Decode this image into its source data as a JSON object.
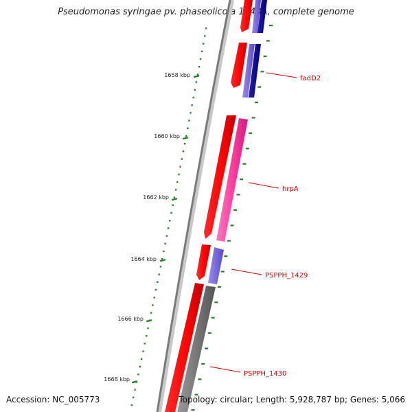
{
  "title": "Pseudomonas syringae pv. phaseolicola 1448A, complete genome",
  "accession": "Accession: NC_005773",
  "summary": "Topology: circular; Length: 5,928,787 bp; Genes: 5,066",
  "scale_ticks": [
    "1658 kbp",
    "1660 kbp",
    "1662 kbp",
    "1664 kbp",
    "1666 kbp",
    "1668 kbp"
  ],
  "gene_labels": [
    "fadD2",
    "hrpA",
    "PSPPH_1429",
    "PSPPH_1430"
  ],
  "colors": {
    "backbone": "#808080",
    "scale_tick": "#2a7f2a",
    "label_red": "#d10000",
    "cds_red": "#ff0000",
    "cds_pink": "#ff3fa0",
    "cds_blue_light": "#6a5acd",
    "cds_blue_dark": "#0a0a8a",
    "cds_gray": "#707070"
  }
}
